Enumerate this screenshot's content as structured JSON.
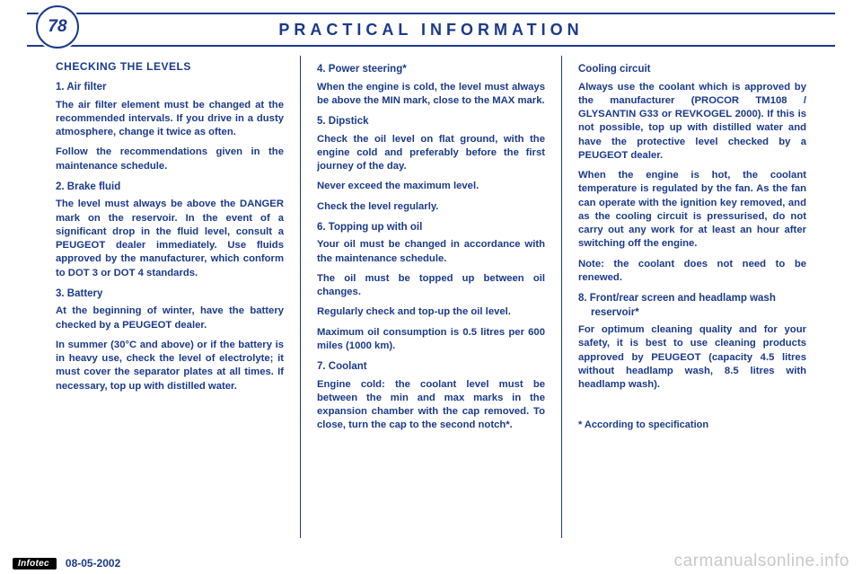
{
  "colors": {
    "primary": "#1b3a8a",
    "watermark": "#c9c9c9",
    "logo_bg": "#000000",
    "logo_fg": "#ffffff",
    "page_bg": "#ffffff"
  },
  "header": {
    "page_number": "78",
    "title": "PRACTICAL INFORMATION"
  },
  "col1": {
    "title": "CHECKING THE LEVELS",
    "s1_title": "1. Air filter",
    "s1_p1": "The air filter element must be changed at the recommended intervals. If you drive in a dusty atmosphere, change it twice as often.",
    "s1_p2": "Follow the recommendations given in the maintenance schedule.",
    "s2_title": "2. Brake fluid",
    "s2_p1": "The level must always be above the DANGER mark on the reservoir. In the event of a significant drop in the fluid level, consult a PEUGEOT dealer immediately. Use fluids approved by the manufacturer, which conform to DOT 3 or DOT 4 standards.",
    "s3_title": "3. Battery",
    "s3_p1": "At the beginning of winter, have the battery checked by a PEUGEOT dealer.",
    "s3_p2": "In summer (30°C and above) or if the battery is in heavy use, check the level of electrolyte; it must cover the separator plates at all times. If necessary, top up with distilled water."
  },
  "col2": {
    "s4_title": "4. Power steering*",
    "s4_p1": "When the engine is cold, the level must always be above the MIN mark, close to the MAX mark.",
    "s5_title": "5. Dipstick",
    "s5_p1": "Check the oil level on flat ground, with the engine cold and preferably before the first journey of the day.",
    "s5_p2": "Never exceed the maximum level.",
    "s5_p3": "Check the level regularly.",
    "s6_title": "6. Topping up with oil",
    "s6_p1": "Your oil must be changed in accordance with the maintenance schedule.",
    "s6_p2": "The oil must be topped up between oil changes.",
    "s6_p3": "Regularly check and top-up the oil level.",
    "s6_p4": "Maximum oil consumption is 0.5 litres per 600 miles (1000 km).",
    "s7_title": "7. Coolant",
    "s7_p1": "Engine cold: the coolant level must be between the min and max marks in the expansion chamber with the cap removed. To close, turn the cap to the second notch*."
  },
  "col3": {
    "s_cool_title": "Cooling circuit",
    "s_cool_p1": "Always use the coolant which is approved by the manufacturer (PROCOR TM108 / GLYSANTIN G33 or REVKOGEL 2000). If this is not possible, top up with distilled water and have the protective level checked by a PEUGEOT dealer.",
    "s_cool_p2": "When the engine is hot, the coolant temperature is regulated by the fan. As the fan can operate with the ignition key removed, and as the cooling circuit is pressurised, do not carry out any work for at least an hour after switching off the engine.",
    "s_cool_p3": "Note: the coolant does not need to be renewed.",
    "s8_title": "8. Front/rear screen and headlamp wash reservoir*",
    "s8_p1": "For optimum cleaning quality and for your safety, it is best to use cleaning products approved by PEUGEOT (capacity 4.5 litres without headlamp wash, 8.5 litres with headlamp wash).",
    "footnote": "* According to specification"
  },
  "footer": {
    "logo": "Infotec",
    "date": "08-05-2002",
    "watermark": "carmanualsonline.info"
  }
}
